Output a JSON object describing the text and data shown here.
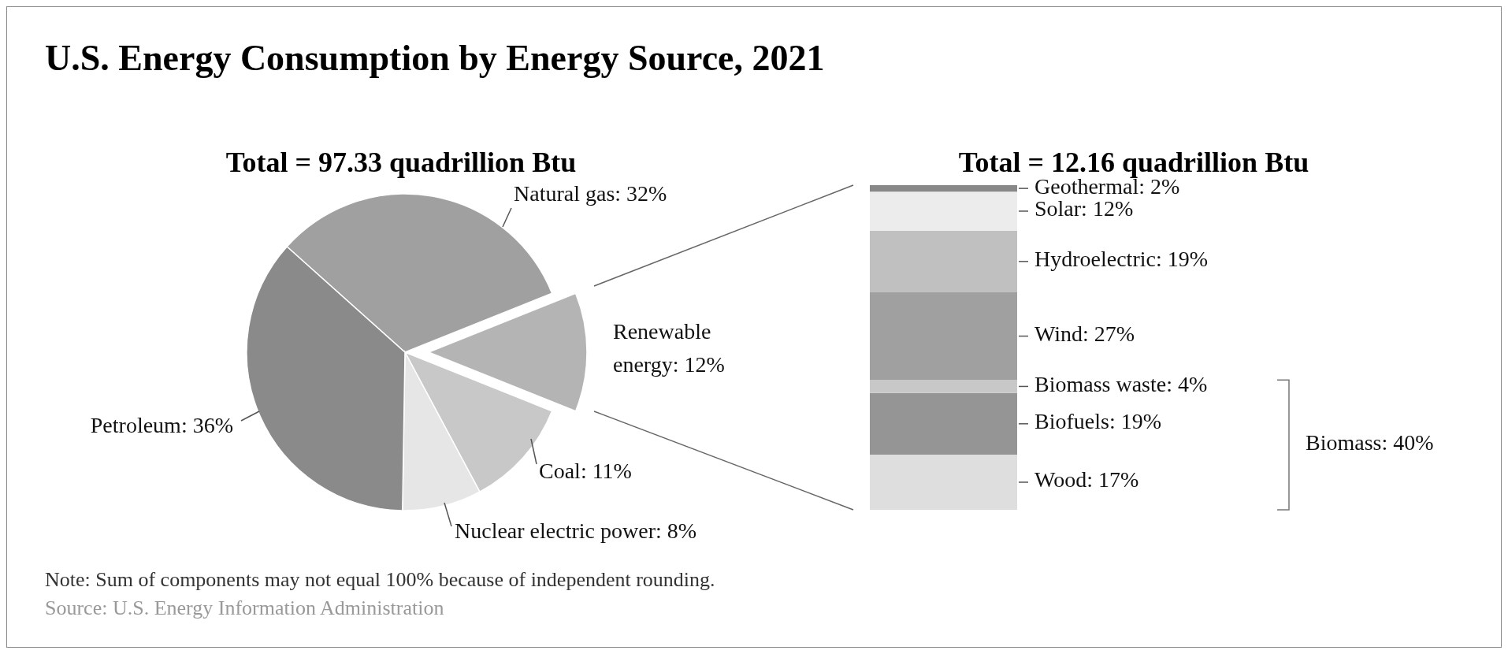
{
  "chart_data": [
    {
      "type": "pie",
      "title": "U.S. Energy Consumption by Energy Source, 2021",
      "subtitle": "Total = 97.33 quadrillion Btu",
      "categories": [
        "Natural gas",
        "Renewable energy",
        "Coal",
        "Nuclear electric power",
        "Petroleum"
      ],
      "values": [
        32,
        12,
        11,
        8,
        36
      ],
      "value_labels": [
        "32%",
        "12%",
        "11%",
        "8%",
        "36%"
      ],
      "colors": [
        "#a0a0a0",
        "#b4b4b4",
        "#c8c8c8",
        "#e6e6e6",
        "#8a8a8a"
      ],
      "annotations": [
        "Note: Sum of components may not equal 100% because of independent rounding.",
        "Source: U.S. Energy Information Administration"
      ]
    },
    {
      "type": "bar",
      "stacked": true,
      "subtitle": "Total = 12.16 quadrillion Btu",
      "categories": [
        null
      ],
      "series": [
        {
          "color": "#dedede",
          "values": [
            17
          ],
          "value_labels": [
            "Wood: 17%"
          ]
        },
        {
          "color": "#959595",
          "values": [
            19
          ],
          "value_labels": [
            "Biofuels: 19%"
          ]
        },
        {
          "color": "#c8c8c8",
          "values": [
            4
          ],
          "value_labels": [
            "Biomass waste: 4%"
          ]
        },
        {
          "color": "#a0a0a0",
          "values": [
            27
          ],
          "value_labels": [
            "Wind: 27%"
          ]
        },
        {
          "color": "#c0c0c0",
          "values": [
            19
          ],
          "value_labels": [
            "Hydroelectric: 19%"
          ]
        },
        {
          "color": "#ececec",
          "values": [
            12
          ],
          "value_labels": [
            "Solar: 12%"
          ]
        },
        {
          "color": "#888888",
          "values": [
            2
          ],
          "value_labels": [
            "Geothermal: 2%"
          ]
        }
      ],
      "annotations": [
        "Biomass: 40%"
      ]
    }
  ]
}
